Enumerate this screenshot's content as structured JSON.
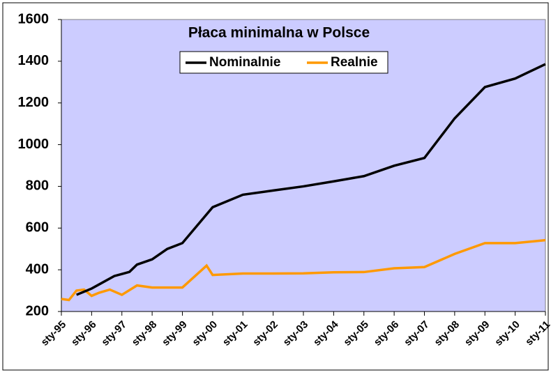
{
  "chart_data": {
    "type": "line",
    "title": "Płaca minimalna w Polsce",
    "xlim": [
      1995,
      2011
    ],
    "xticks": [
      {
        "value": 1995,
        "label": "sty-95"
      },
      {
        "value": 1996,
        "label": "sty-96"
      },
      {
        "value": 1997,
        "label": "sty-97"
      },
      {
        "value": 1998,
        "label": "sty-98"
      },
      {
        "value": 1999,
        "label": "sty-99"
      },
      {
        "value": 2000,
        "label": "sty-00"
      },
      {
        "value": 2001,
        "label": "sty-01"
      },
      {
        "value": 2002,
        "label": "sty-02"
      },
      {
        "value": 2003,
        "label": "sty-03"
      },
      {
        "value": 2004,
        "label": "sty-04"
      },
      {
        "value": 2005,
        "label": "sty-05"
      },
      {
        "value": 2006,
        "label": "sty-06"
      },
      {
        "value": 2007,
        "label": "sty-07"
      },
      {
        "value": 2008,
        "label": "sty-08"
      },
      {
        "value": 2009,
        "label": "sty-09"
      },
      {
        "value": 2010,
        "label": "sty-10"
      },
      {
        "value": 2011,
        "label": "sty-11"
      }
    ],
    "ylim": [
      200,
      1600
    ],
    "yticks": [
      200,
      400,
      600,
      800,
      1000,
      1200,
      1400,
      1600
    ],
    "plot_background": "#ccccff",
    "series": [
      {
        "name": "Nominalnie",
        "color": "#000000",
        "x": [
          1995.5,
          1996.0,
          1996.25,
          1996.75,
          1997.0,
          1997.25,
          1997.5,
          1998.0,
          1998.5,
          1999.0,
          2000.0,
          2001,
          2002,
          2003,
          2004,
          2005,
          2006,
          2007,
          2008,
          2009,
          2010,
          2011
        ],
        "values": [
          280,
          310,
          330,
          370,
          380,
          390,
          425,
          450,
          500,
          528,
          700,
          760,
          780,
          800,
          824,
          849,
          899,
          936,
          1126,
          1276,
          1317,
          1386
        ]
      },
      {
        "name": "Realnie",
        "color": "#ff9900",
        "x": [
          1995.0,
          1995.25,
          1995.5,
          1995.75,
          1996.0,
          1996.25,
          1996.6,
          1997.0,
          1997.5,
          1998.0,
          1999.0,
          1999.8,
          2000.0,
          2001,
          2002,
          2003,
          2004,
          2005,
          2006,
          2007,
          2008,
          2009,
          2010,
          2011
        ],
        "values": [
          260,
          255,
          300,
          305,
          275,
          290,
          305,
          280,
          325,
          315,
          315,
          420,
          375,
          382,
          382,
          383,
          388,
          389,
          407,
          413,
          476,
          528,
          528,
          542
        ]
      }
    ]
  }
}
